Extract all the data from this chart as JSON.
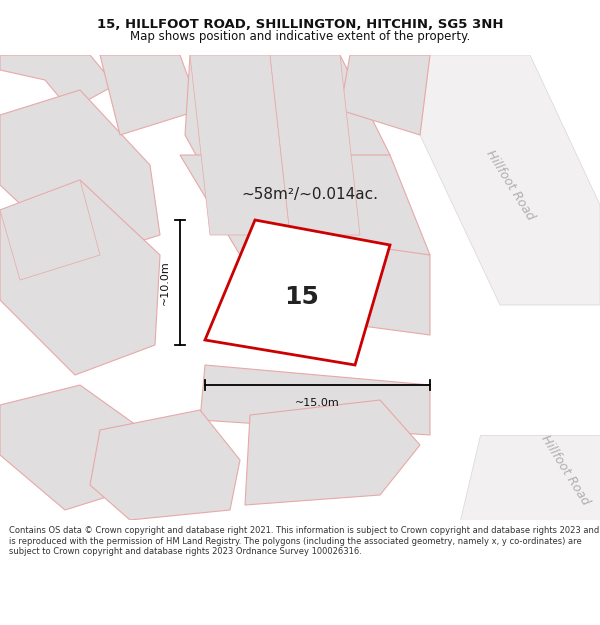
{
  "title_line1": "15, HILLFOOT ROAD, SHILLINGTON, HITCHIN, SG5 3NH",
  "title_line2": "Map shows position and indicative extent of the property.",
  "area_text": "~58m²/~0.014ac.",
  "plot_number": "15",
  "dim_width": "~15.0m",
  "dim_height": "~10.0m",
  "road_label1": "Hillfoot Road",
  "road_label2": "Hillfoot Road",
  "footer_text": "Contains OS data © Crown copyright and database right 2021. This information is subject to Crown copyright and database rights 2023 and is reproduced with the permission of HM Land Registry. The polygons (including the associated geometry, namely x, y co-ordinates) are subject to Crown copyright and database rights 2023 Ordnance Survey 100026316.",
  "map_bg": "#ffffff",
  "building_fill": "#e0dede",
  "building_edge": "#e8a8a8",
  "road_fill": "#f0eeee",
  "road_edge": "#e0dede",
  "plot_fill": "#ffffff",
  "plot_edge": "#cc0000",
  "dim_color": "#111111",
  "road_text_color": "#b0b0b0",
  "title_color": "#111111",
  "footer_color": "#333333",
  "title_fontsize": 9.5,
  "subtitle_fontsize": 8.5,
  "area_fontsize": 11,
  "plot_num_fontsize": 18,
  "dim_fontsize": 8,
  "road_fontsize": 9,
  "footer_fontsize": 6.0
}
